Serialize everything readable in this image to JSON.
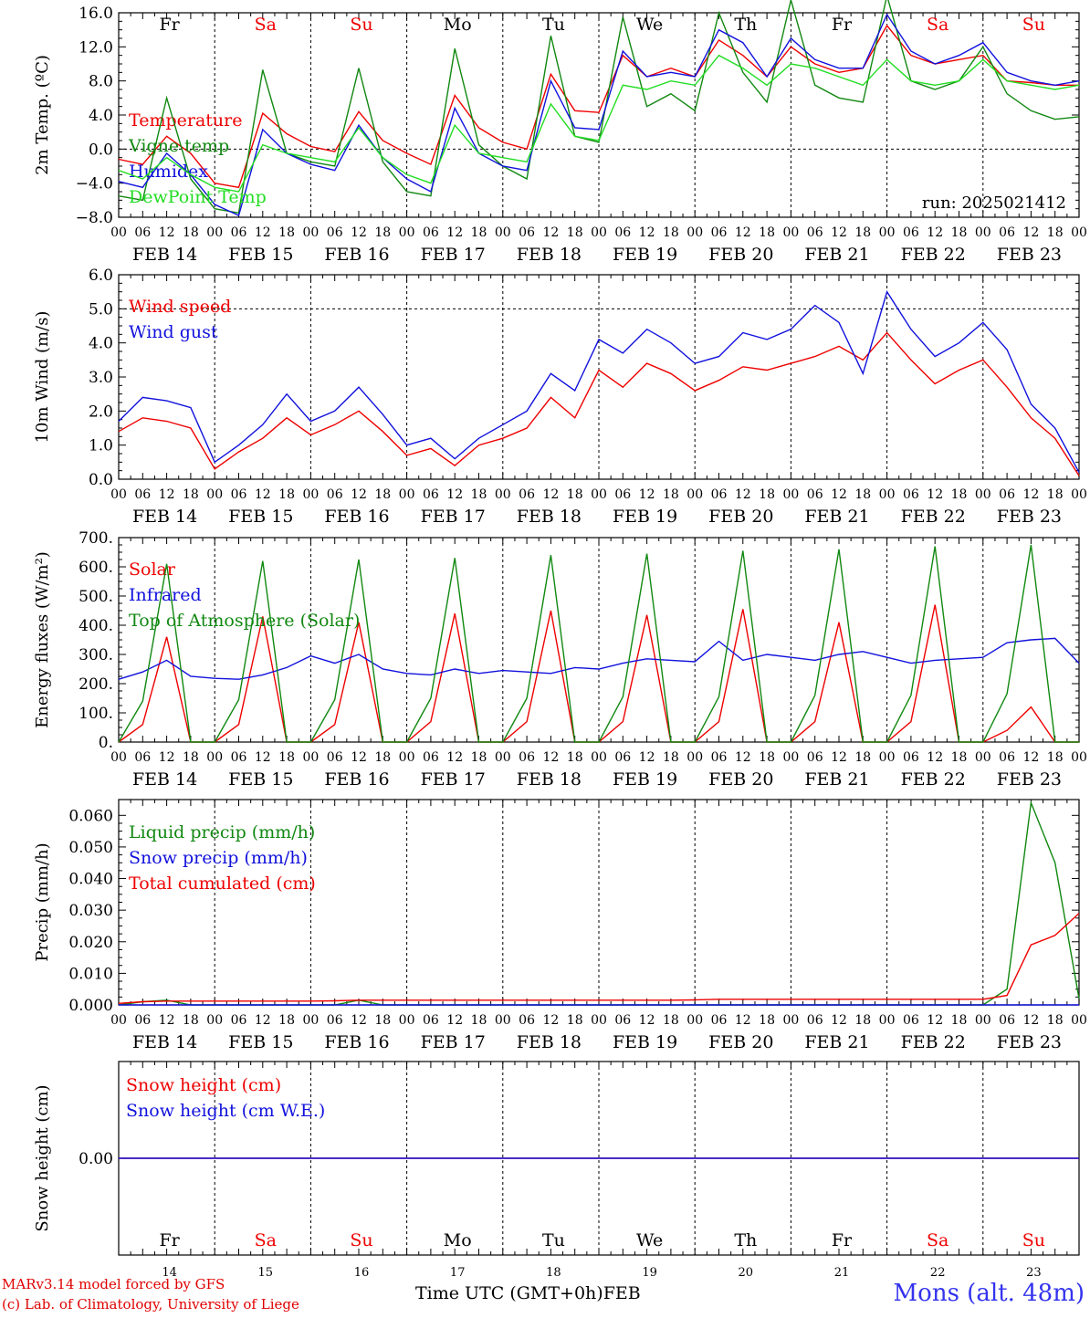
{
  "colors": {
    "red": "#ee0000",
    "green": "#118811",
    "blue": "#1111dd",
    "lightgreen": "#22dd22",
    "purple": "#660099",
    "grid": "#000000"
  },
  "days": {
    "names": [
      "Fr",
      "Sa",
      "Su",
      "Mo",
      "Tu",
      "We",
      "Th",
      "Fr",
      "Sa",
      "Su"
    ],
    "weekend": [
      false,
      true,
      true,
      false,
      false,
      false,
      false,
      false,
      true,
      true
    ],
    "dates": [
      "FEB 14",
      "FEB 15",
      "FEB 16",
      "FEB 17",
      "FEB 18",
      "FEB 19",
      "FEB 20",
      "FEB 21",
      "FEB 22",
      "FEB 23"
    ],
    "day_numbers": [
      "14",
      "15",
      "16",
      "17",
      "18",
      "19",
      "20",
      "21",
      "22",
      "23"
    ],
    "hour_ticks": [
      "00",
      "06",
      "12",
      "18"
    ],
    "final_tick": "00"
  },
  "footer": {
    "credit_line1": "MARv3.14 model forced by GFS",
    "credit_line2": "(c) Lab. of Climatology, University of Liege",
    "x_title": "Time UTC (GMT+0h)",
    "month": "FEB",
    "station": "Mons (alt. 48m)"
  },
  "chart_data": [
    {
      "type": "line",
      "ylabel": "2m Temp. (ºC)",
      "ylim": [
        -8,
        16
      ],
      "yticks": [
        -8,
        -4,
        0,
        4,
        8,
        12,
        16
      ],
      "ytick_labels": [
        "−8.0",
        "−4.0",
        "0.0",
        "4.0",
        "8.0",
        "12.0",
        "16.0"
      ],
      "ref_line": 0,
      "annotation": "run: 2025021412",
      "x": [
        0,
        6,
        12,
        18,
        24,
        30,
        36,
        42,
        48,
        54,
        60,
        66,
        72,
        78,
        84,
        90,
        96,
        102,
        108,
        114,
        120,
        126,
        132,
        138,
        144,
        150,
        156,
        162,
        168,
        174,
        180,
        186,
        192,
        198,
        204,
        210,
        216,
        222,
        228,
        234,
        240
      ],
      "series": [
        {
          "name": "Temperature",
          "color": "red",
          "values": [
            -1.2,
            -1.8,
            1.5,
            -0.5,
            -4.0,
            -4.5,
            4.2,
            1.8,
            0.3,
            -0.3,
            4.4,
            1.0,
            -0.5,
            -1.8,
            6.3,
            2.5,
            0.8,
            0.0,
            8.8,
            4.5,
            4.3,
            11.0,
            8.5,
            9.5,
            8.5,
            12.8,
            11.0,
            8.5,
            12.0,
            10.0,
            9.0,
            9.5,
            14.5,
            11.0,
            10.0,
            10.5,
            11.0,
            8.0,
            7.8,
            7.5,
            7.5
          ]
        },
        {
          "name": "Vigne temp",
          "color": "green",
          "values": [
            -5.5,
            -6.0,
            6.0,
            -3.5,
            -7.0,
            -7.5,
            9.3,
            -0.5,
            -1.5,
            -2.0,
            9.5,
            -1.5,
            -5.0,
            -5.5,
            11.8,
            0.5,
            -2.0,
            -3.5,
            13.3,
            1.5,
            0.8,
            15.5,
            5.0,
            6.5,
            4.5,
            16.0,
            9.0,
            5.5,
            17.5,
            7.5,
            6.0,
            5.5,
            18.0,
            8.0,
            7.0,
            8.0,
            12.0,
            6.5,
            4.5,
            3.5,
            3.8
          ]
        },
        {
          "name": "Humidex",
          "color": "blue",
          "values": [
            -3.8,
            -4.5,
            -0.5,
            -3.0,
            -6.5,
            -7.8,
            2.3,
            -0.5,
            -1.8,
            -2.5,
            2.8,
            -1.0,
            -3.5,
            -5.0,
            4.8,
            -0.5,
            -2.0,
            -2.5,
            8.0,
            2.5,
            2.3,
            11.5,
            8.5,
            9.0,
            8.5,
            14.0,
            12.5,
            8.5,
            13.0,
            10.5,
            9.5,
            9.5,
            15.8,
            11.5,
            10.0,
            11.0,
            12.5,
            9.0,
            8.0,
            7.5,
            8.0
          ]
        },
        {
          "name": "DewPoint Temp",
          "color": "lightgreen",
          "values": [
            -2.5,
            -3.5,
            -1.0,
            -3.0,
            -4.5,
            -5.0,
            0.5,
            -0.5,
            -1.0,
            -1.5,
            2.5,
            -1.0,
            -3.0,
            -4.0,
            2.8,
            -0.5,
            -1.0,
            -1.5,
            5.3,
            1.5,
            1.0,
            7.5,
            7.0,
            8.0,
            7.5,
            11.0,
            9.5,
            7.5,
            10.0,
            9.5,
            8.5,
            7.5,
            10.5,
            8.0,
            7.5,
            8.0,
            10.5,
            8.0,
            7.5,
            7.0,
            7.5
          ]
        }
      ]
    },
    {
      "type": "line",
      "ylabel": "10m Wind (m/s)",
      "ylim": [
        0,
        6
      ],
      "yticks": [
        0,
        1,
        2,
        3,
        4,
        5,
        6
      ],
      "ytick_labels": [
        "0.0",
        "1.0",
        "2.0",
        "3.0",
        "4.0",
        "5.0",
        "6.0"
      ],
      "ref_line": 5,
      "x": [
        0,
        6,
        12,
        18,
        24,
        30,
        36,
        42,
        48,
        54,
        60,
        66,
        72,
        78,
        84,
        90,
        96,
        102,
        108,
        114,
        120,
        126,
        132,
        138,
        144,
        150,
        156,
        162,
        168,
        174,
        180,
        186,
        192,
        198,
        204,
        210,
        216,
        222,
        228,
        234,
        240
      ],
      "series": [
        {
          "name": "Wind speed",
          "color": "red",
          "values": [
            1.4,
            1.8,
            1.7,
            1.5,
            0.3,
            0.8,
            1.2,
            1.8,
            1.3,
            1.6,
            2.0,
            1.4,
            0.7,
            0.9,
            0.4,
            1.0,
            1.2,
            1.5,
            2.4,
            1.8,
            3.2,
            2.7,
            3.4,
            3.1,
            2.6,
            2.9,
            3.3,
            3.2,
            3.4,
            3.6,
            3.9,
            3.5,
            4.3,
            3.5,
            2.8,
            3.2,
            3.5,
            2.7,
            1.8,
            1.2,
            0.1
          ]
        },
        {
          "name": "Wind gust",
          "color": "blue",
          "values": [
            1.7,
            2.4,
            2.3,
            2.1,
            0.5,
            1.0,
            1.6,
            2.5,
            1.7,
            2.0,
            2.7,
            1.9,
            1.0,
            1.2,
            0.6,
            1.2,
            1.6,
            2.0,
            3.1,
            2.6,
            4.1,
            3.7,
            4.4,
            4.0,
            3.4,
            3.6,
            4.3,
            4.1,
            4.4,
            5.1,
            4.6,
            3.1,
            5.5,
            4.4,
            3.6,
            4.0,
            4.6,
            3.8,
            2.2,
            1.5,
            0.2
          ]
        }
      ]
    },
    {
      "type": "line",
      "ylabel": "Energy fluxes (W/m²)",
      "ylim": [
        0,
        700
      ],
      "yticks": [
        0,
        100,
        200,
        300,
        400,
        500,
        600,
        700
      ],
      "ytick_labels": [
        "0.",
        "100.",
        "200.",
        "300.",
        "400.",
        "500.",
        "600.",
        "700."
      ],
      "x": [
        0,
        6,
        12,
        18,
        24,
        30,
        36,
        42,
        48,
        54,
        60,
        66,
        72,
        78,
        84,
        90,
        96,
        102,
        108,
        114,
        120,
        126,
        132,
        138,
        144,
        150,
        156,
        162,
        168,
        174,
        180,
        186,
        192,
        198,
        204,
        210,
        216,
        222,
        228,
        234,
        240
      ],
      "series": [
        {
          "name": "Solar",
          "color": "red",
          "values": [
            0,
            60,
            360,
            0,
            0,
            60,
            430,
            0,
            0,
            60,
            410,
            0,
            0,
            70,
            440,
            0,
            0,
            70,
            450,
            0,
            0,
            70,
            435,
            0,
            0,
            70,
            455,
            0,
            0,
            70,
            410,
            0,
            0,
            70,
            470,
            0,
            0,
            40,
            120,
            0,
            0
          ]
        },
        {
          "name": "Infrared",
          "color": "blue",
          "values": [
            215,
            240,
            280,
            225,
            218,
            215,
            230,
            255,
            295,
            270,
            300,
            250,
            235,
            230,
            250,
            235,
            245,
            240,
            235,
            255,
            250,
            270,
            285,
            280,
            275,
            345,
            280,
            300,
            290,
            280,
            300,
            310,
            290,
            270,
            280,
            285,
            290,
            340,
            350,
            355,
            270
          ]
        },
        {
          "name": "Top of Atmosphere (Solar)",
          "color": "green",
          "values": [
            0,
            140,
            610,
            0,
            0,
            145,
            620,
            0,
            0,
            145,
            625,
            0,
            0,
            150,
            630,
            0,
            0,
            150,
            640,
            0,
            0,
            155,
            645,
            0,
            0,
            155,
            655,
            0,
            0,
            160,
            660,
            0,
            0,
            160,
            670,
            0,
            0,
            165,
            675,
            0,
            0
          ]
        }
      ]
    },
    {
      "type": "line",
      "ylabel": "Precip (mm/h)",
      "ylim": [
        0,
        0.065
      ],
      "yticks": [
        0,
        0.01,
        0.02,
        0.03,
        0.04,
        0.05,
        0.06
      ],
      "ytick_labels": [
        "0.000",
        "0.010",
        "0.020",
        "0.030",
        "0.040",
        "0.050",
        "0.060"
      ],
      "x": [
        0,
        6,
        12,
        18,
        24,
        30,
        36,
        42,
        48,
        54,
        60,
        66,
        72,
        78,
        84,
        90,
        96,
        102,
        108,
        114,
        120,
        126,
        132,
        138,
        144,
        150,
        156,
        162,
        168,
        174,
        180,
        186,
        192,
        198,
        204,
        210,
        216,
        222,
        228,
        234,
        240
      ],
      "series": [
        {
          "name": "Liquid precip (mm/h)",
          "color": "green",
          "values": [
            0,
            0.001,
            0.0015,
            0,
            0,
            0,
            0,
            0,
            0,
            0,
            0.0015,
            0,
            0,
            0,
            0,
            0,
            0,
            0,
            0,
            0,
            0,
            0,
            0,
            0,
            0,
            0,
            0,
            0,
            0,
            0,
            0,
            0,
            0,
            0,
            0,
            0,
            0,
            0.005,
            0.064,
            0.045,
            0.002
          ]
        },
        {
          "name": "Snow precip (mm/h)",
          "color": "blue",
          "values": [
            0,
            0,
            0,
            0,
            0,
            0,
            0,
            0,
            0,
            0,
            0,
            0,
            0,
            0,
            0,
            0,
            0,
            0,
            0,
            0,
            0,
            0,
            0,
            0,
            0,
            0,
            0,
            0,
            0,
            0,
            0,
            0,
            0,
            0,
            0,
            0,
            0,
            0,
            0,
            0,
            0
          ]
        },
        {
          "name": "Total cumulated (cm)",
          "color": "red",
          "values": [
            0.0005,
            0.001,
            0.0012,
            0.0012,
            0.0012,
            0.0012,
            0.0012,
            0.0012,
            0.0012,
            0.0013,
            0.0015,
            0.0015,
            0.0015,
            0.0015,
            0.0015,
            0.0015,
            0.0015,
            0.0015,
            0.0015,
            0.0015,
            0.0015,
            0.0015,
            0.0015,
            0.0015,
            0.0016,
            0.0018,
            0.0018,
            0.0018,
            0.0018,
            0.0018,
            0.0018,
            0.0018,
            0.0018,
            0.0018,
            0.0018,
            0.0018,
            0.0018,
            0.003,
            0.019,
            0.022,
            0.029
          ]
        }
      ]
    },
    {
      "type": "line",
      "ylabel": "Snow height (cm)",
      "ylim": [
        -1,
        1
      ],
      "yticks": [
        0
      ],
      "ytick_labels": [
        "0.00"
      ],
      "x": [
        0,
        240
      ],
      "series": [
        {
          "name": "Snow height (cm)",
          "color": "red",
          "values": [
            0,
            0
          ]
        },
        {
          "name": "Snow height (cm W.E.)",
          "color": "blue",
          "values": [
            0,
            0
          ]
        }
      ]
    }
  ]
}
